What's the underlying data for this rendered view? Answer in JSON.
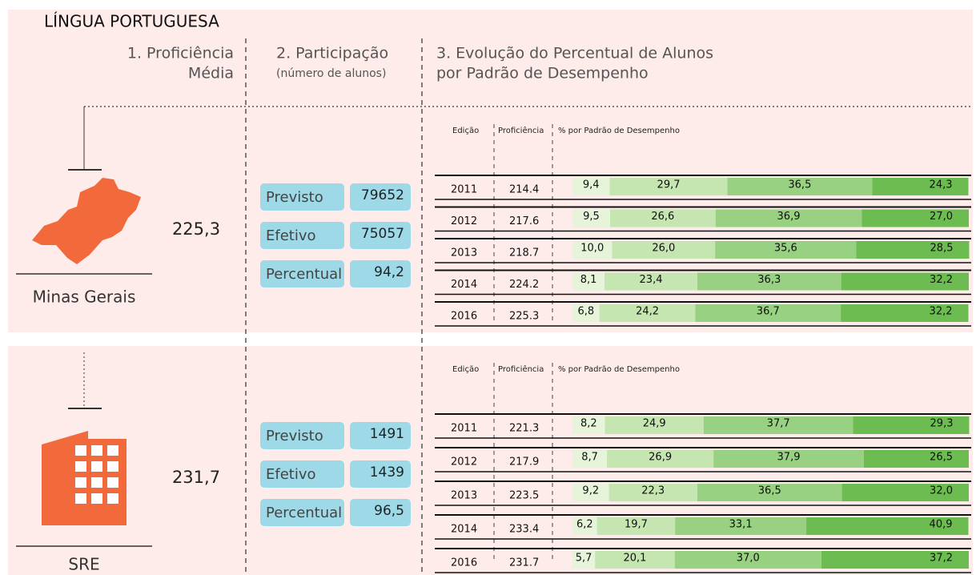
{
  "title": "LÍNGUA PORTUGUESA",
  "headers": [
    [
      "1. Proficiência",
      "Média"
    ],
    [
      "2. Participação",
      "(número de alunos)"
    ],
    [
      "3. Evolução do Percentual de Alunos",
      "por Padrão de Desempenho"
    ]
  ],
  "sections": [
    {
      "name": "Minas Gerais",
      "proficiency": "225,3",
      "participation": [
        {
          "label": "Previsto",
          "value": "79652"
        },
        {
          "label": "Efetivo",
          "value": "75057"
        },
        {
          "label": "Percentual",
          "value": "94,2"
        }
      ],
      "table": {
        "headers": [
          "Edição",
          "Proficiência",
          "% por Padrão de Desempenho"
        ],
        "rows": [
          {
            "edition": "2011",
            "proficiency": "214.4",
            "levels": [
              "9,4",
              "29,7",
              "36,5",
              "24,3"
            ]
          },
          {
            "edition": "2012",
            "proficiency": "217.6",
            "levels": [
              "9,5",
              "26,6",
              "36,9",
              "27,0"
            ]
          },
          {
            "edition": "2013",
            "proficiency": "218.7",
            "levels": [
              "10,0",
              "26,0",
              "35,6",
              "28,5"
            ]
          },
          {
            "edition": "2014",
            "proficiency": "224.2",
            "levels": [
              "8,1",
              "23,4",
              "36,3",
              "32,2"
            ]
          },
          {
            "edition": "2016",
            "proficiency": "225.3",
            "levels": [
              "6,8",
              "24,2",
              "36,7",
              "32,2"
            ]
          }
        ]
      }
    },
    {
      "name": "SRE",
      "proficiency": "231,7",
      "participation": [
        {
          "label": "Previsto",
          "value": "1491"
        },
        {
          "label": "Efetivo",
          "value": "1439"
        },
        {
          "label": "Percentual",
          "value": "96,5"
        }
      ],
      "table": {
        "headers": [
          "Edição",
          "Proficiência",
          "% por Padrão de Desempenho"
        ],
        "rows": [
          {
            "edition": "2011",
            "proficiency": "221.3",
            "levels": [
              "8,2",
              "24,9",
              "37,7",
              "29,3"
            ]
          },
          {
            "edition": "2012",
            "proficiency": "217.9",
            "levels": [
              "8,7",
              "26,9",
              "37,9",
              "26,5"
            ]
          },
          {
            "edition": "2013",
            "proficiency": "223.5",
            "levels": [
              "9,2",
              "22,3",
              "36,5",
              "32,0"
            ]
          },
          {
            "edition": "2014",
            "proficiency": "233.4",
            "levels": [
              "6,2",
              "19,7",
              "33,1",
              "40,9"
            ]
          },
          {
            "edition": "2016",
            "proficiency": "231.7",
            "levels": [
              "5,7",
              "20,1",
              "37,0",
              "37,2"
            ]
          }
        ]
      }
    }
  ]
}
